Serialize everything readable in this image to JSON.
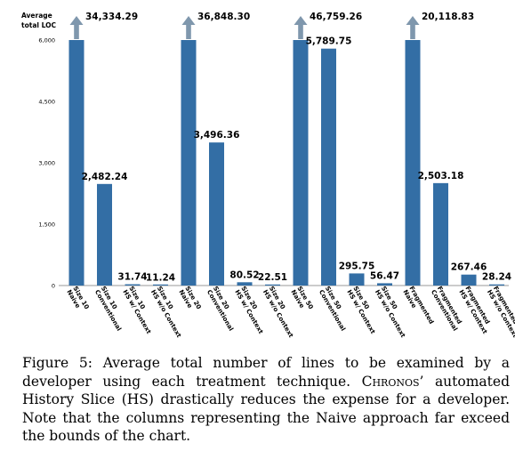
{
  "chart_data": {
    "type": "bar",
    "ylabel": "Average total LOC",
    "ylabel_lines": [
      "Average",
      "total LOC"
    ],
    "ylim": [
      0,
      6000
    ],
    "yticks": [
      0,
      1500,
      3000,
      4500,
      6000
    ],
    "ytick_labels": [
      "0",
      "1,500",
      "3,000",
      "4,500",
      "6,000"
    ],
    "bar_color": "#336ea5",
    "arrow_color": "#7f97ad",
    "categories": [
      [
        "Naive",
        "Size 10"
      ],
      [
        "Conventional",
        "Size 10"
      ],
      [
        "HS w/ Context",
        "Size 10"
      ],
      [
        "HS w/o Context",
        "Size 10"
      ],
      [
        "Naive",
        "Size 20"
      ],
      [
        "Conventional",
        "Size 20"
      ],
      [
        "HS w/ Context",
        "Size 20"
      ],
      [
        "HS w/o Context",
        "Size 20"
      ],
      [
        "Naive",
        "Size 50"
      ],
      [
        "Conventional",
        "Size 50"
      ],
      [
        "HS w/ Context",
        "Size 50"
      ],
      [
        "HS w/o Context",
        "Size 50"
      ],
      [
        "Naive",
        "Fragmented"
      ],
      [
        "Conventional",
        "Fragmented"
      ],
      [
        "HS w/ Context",
        "Fragmented"
      ],
      [
        "HS w/o Context",
        "Fragmented"
      ]
    ],
    "values": [
      34334.29,
      2482.24,
      31.74,
      11.24,
      36848.3,
      3496.36,
      80.52,
      22.51,
      46759.26,
      5789.75,
      295.75,
      56.47,
      20118.83,
      2503.18,
      267.46,
      28.24
    ],
    "value_labels": [
      "34,334.29",
      "2,482.24",
      "31.74",
      "11.24",
      "36,848.30",
      "3,496.36",
      "80.52",
      "22.51",
      "46,759.26",
      "5,789.75",
      "295.75",
      "56.47",
      "20,118.83",
      "2,503.18",
      "267.46",
      "28.24"
    ],
    "overflow_arrow_on": [
      0,
      4,
      8,
      12
    ]
  },
  "caption": {
    "prefix": "Figure 5: Average total number of lines to be examined by a developer using each treatment technique.",
    "tool_name": "Chronos",
    "suffix": "’ automated History Slice (HS) drastically reduces the expense for a developer. Note that the columns representing the Naive approach far exceed the bounds of the chart."
  }
}
